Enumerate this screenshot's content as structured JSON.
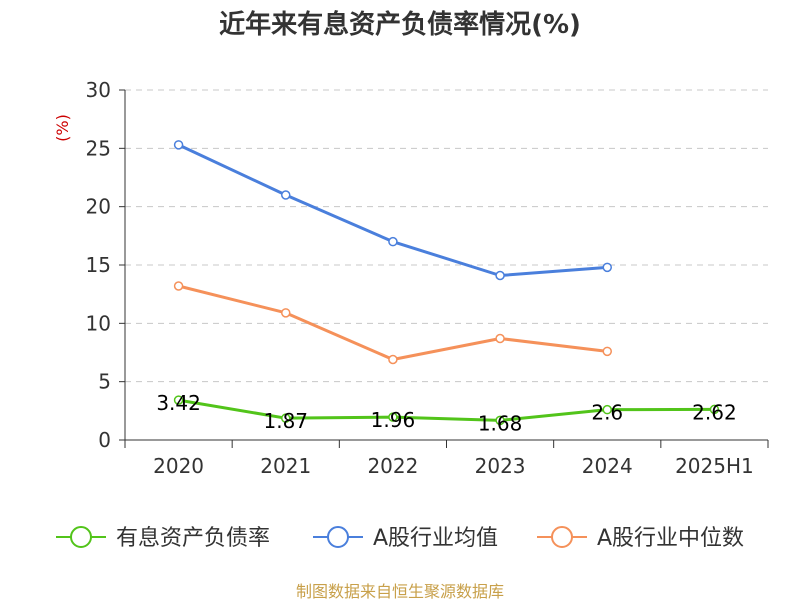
{
  "chart_data": {
    "type": "line",
    "title": "近年来有息资产负债率情况(%)",
    "ylabel": "(%)",
    "categories": [
      "2020",
      "2021",
      "2022",
      "2023",
      "2024",
      "2025H1"
    ],
    "ylim": [
      0,
      30
    ],
    "yticks": [
      0,
      5,
      10,
      15,
      20,
      25,
      30
    ],
    "grid": true,
    "legend_position": "bottom",
    "series": [
      {
        "name": "有息资产负债率",
        "color": "#52c41a",
        "values": [
          3.42,
          1.87,
          1.96,
          1.68,
          2.6,
          2.62
        ],
        "labels": [
          "3.42",
          "1.87",
          "1.96",
          "1.68",
          "2.6",
          "2.62"
        ]
      },
      {
        "name": "A股行业均值",
        "color": "#4a7fdc",
        "values": [
          25.3,
          21.0,
          17.0,
          14.1,
          14.8,
          null
        ]
      },
      {
        "name": "A股行业中位数",
        "color": "#f5915a",
        "values": [
          13.2,
          10.9,
          6.9,
          8.7,
          7.6,
          null
        ]
      }
    ]
  },
  "source": "制图数据来自恒生聚源数据库"
}
